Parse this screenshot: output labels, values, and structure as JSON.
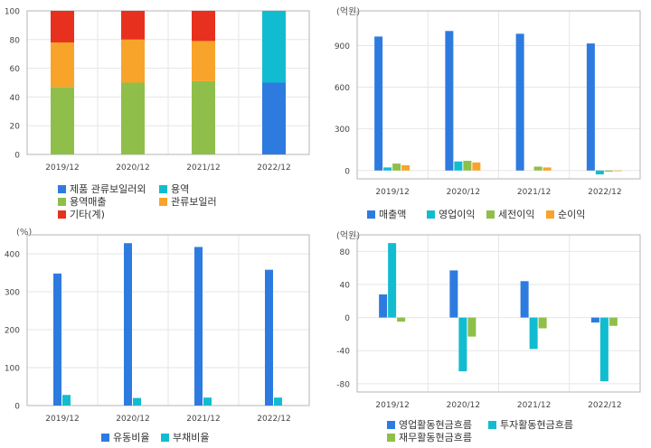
{
  "chart_data": [
    {
      "type": "bar",
      "stacked": true,
      "unit": "",
      "categories": [
        "2019/12",
        "2020/12",
        "2021/12",
        "2022/12"
      ],
      "ylim": [
        0,
        100
      ],
      "yticks": [
        0,
        20,
        40,
        60,
        80,
        100
      ],
      "series": [
        {
          "name": "제품 관류보일러외",
          "color": "#2e7be0",
          "values": [
            0,
            0,
            0,
            50
          ]
        },
        {
          "name": "용역매출",
          "color": "#8fbf4a",
          "values": [
            47,
            50,
            51,
            0
          ]
        },
        {
          "name": "관류보일러",
          "color": "#f8a42a",
          "values": [
            31,
            30,
            28,
            0
          ]
        },
        {
          "name": "기타(계)",
          "color": "#e8301f",
          "values": [
            22,
            20,
            21,
            0
          ]
        },
        {
          "name": "용역",
          "color": "#12bcd0",
          "values": [
            0,
            0,
            0,
            50
          ]
        }
      ],
      "legend_order": [
        "제품 관류보일러외",
        "용역",
        "용역매출",
        "관류보일러",
        "기타(계)"
      ]
    },
    {
      "type": "bar",
      "unit": "(억원)",
      "categories": [
        "2019/12",
        "2020/12",
        "2021/12",
        "2022/12"
      ],
      "ylim": [
        -60,
        1150
      ],
      "yticks": [
        0,
        300,
        600,
        900
      ],
      "series": [
        {
          "name": "매출액",
          "color": "#2e7be0",
          "values": [
            965,
            1005,
            985,
            915
          ]
        },
        {
          "name": "영업이익",
          "color": "#12bcd0",
          "values": [
            22,
            65,
            0,
            -28
          ]
        },
        {
          "name": "세전이익",
          "color": "#8fbf4a",
          "values": [
            50,
            70,
            28,
            -8
          ]
        },
        {
          "name": "순이익",
          "color": "#f8a42a",
          "values": [
            38,
            58,
            22,
            -5
          ]
        }
      ]
    },
    {
      "type": "bar",
      "unit": "(%)",
      "categories": [
        "2019/12",
        "2020/12",
        "2021/12",
        "2022/12"
      ],
      "ylim": [
        0,
        450
      ],
      "yticks": [
        0,
        100,
        200,
        300,
        400
      ],
      "series": [
        {
          "name": "유동비율",
          "color": "#2e7be0",
          "values": [
            348,
            428,
            418,
            358
          ]
        },
        {
          "name": "부채비율",
          "color": "#12bcd0",
          "values": [
            28,
            20,
            21,
            21
          ]
        }
      ]
    },
    {
      "type": "bar",
      "unit": "(억원)",
      "categories": [
        "2019/12",
        "2020/12",
        "2021/12",
        "2022/12"
      ],
      "ylim": [
        -90,
        100
      ],
      "yticks": [
        -80,
        -40,
        0,
        40,
        80
      ],
      "series": [
        {
          "name": "영업활동현금흐름",
          "color": "#2e7be0",
          "values": [
            28,
            57,
            44,
            -6
          ]
        },
        {
          "name": "투자활동현금흐름",
          "color": "#12bcd0",
          "values": [
            90,
            -65,
            -38,
            -77
          ]
        },
        {
          "name": "재무활동현금흐름",
          "color": "#8fbf4a",
          "values": [
            -5,
            -23,
            -13,
            -10
          ]
        }
      ]
    }
  ]
}
